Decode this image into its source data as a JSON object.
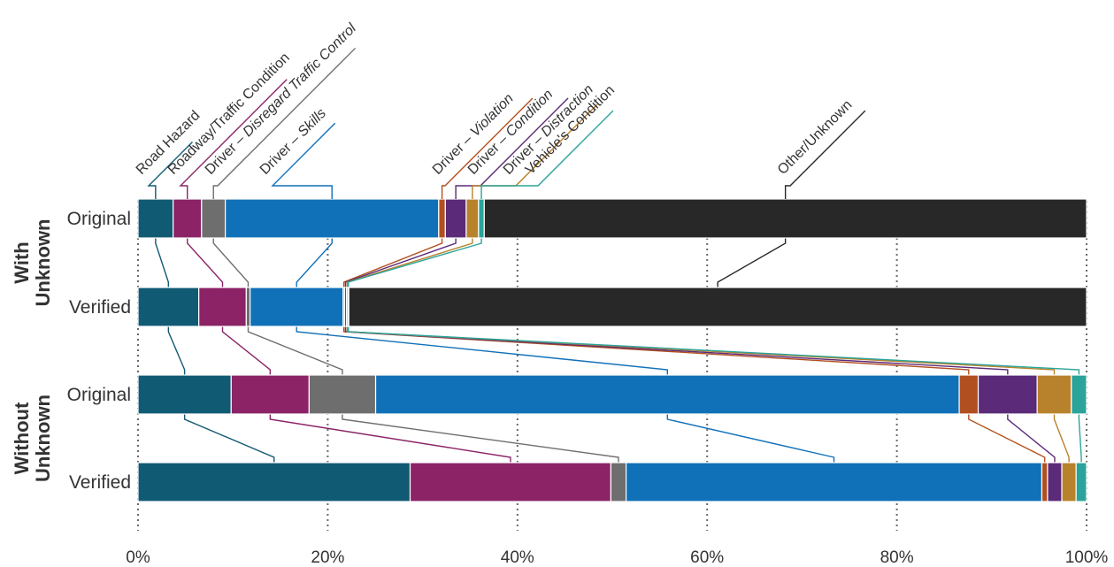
{
  "chart_data": {
    "type": "bar",
    "orientation": "horizontal",
    "stacked": true,
    "normalized": true,
    "groups": [
      {
        "name": "With\nUnknown",
        "rows": [
          "Original",
          "Verified"
        ]
      },
      {
        "name": "Without\nUnknown",
        "rows": [
          "Original",
          "Verified"
        ]
      }
    ],
    "rows": [
      {
        "group": "With Unknown",
        "label": "Original"
      },
      {
        "group": "With Unknown",
        "label": "Verified"
      },
      {
        "group": "Without Unknown",
        "label": "Original"
      },
      {
        "group": "Without Unknown",
        "label": "Verified"
      }
    ],
    "series": [
      {
        "name": "Road Hazard",
        "prefix": "Road Hazard",
        "suffix": "",
        "color": "#115a74",
        "values": [
          3.7,
          6.4,
          9.8,
          28.6
        ]
      },
      {
        "name": "Roadway/Traffic Condition",
        "prefix": "Roadway/Traffic Condition",
        "suffix": "",
        "color": "#8b2366",
        "values": [
          3.0,
          5.0,
          8.2,
          21.1
        ]
      },
      {
        "name": "Driver – Disregard Traffic Control",
        "prefix": "Driver – ",
        "suffix": "Disregard Traffic Control",
        "color": "#6e6e6e",
        "values": [
          2.5,
          0.4,
          7.0,
          1.6
        ]
      },
      {
        "name": "Driver – Skills",
        "prefix": "Driver – ",
        "suffix": "Skills",
        "color": "#1070b8",
        "values": [
          22.5,
          9.8,
          61.4,
          43.7
        ]
      },
      {
        "name": "Driver – Violation",
        "prefix": "Driver – ",
        "suffix": "Violation",
        "color": "#b14f20",
        "values": [
          0.7,
          0.15,
          2.0,
          0.6
        ]
      },
      {
        "name": "Driver – Condition",
        "prefix": "Driver – ",
        "suffix": "Condition",
        "color": "#5b2a78",
        "values": [
          2.2,
          0.2,
          6.2,
          1.5
        ]
      },
      {
        "name": "Driver – Distraction",
        "prefix": "Driver – ",
        "suffix": "Distraction",
        "color": "#b8822c",
        "values": [
          1.3,
          0.15,
          3.6,
          1.5
        ]
      },
      {
        "name": "Vehicle's Condition",
        "prefix": "Vehicle's Condition",
        "suffix": "",
        "color": "#2aa39a",
        "values": [
          0.6,
          0.1,
          1.6,
          1.1
        ]
      },
      {
        "name": "Other/Unknown",
        "prefix": "Other/Unknown",
        "suffix": "",
        "color": "#282828",
        "values": [
          63.5,
          77.7,
          0,
          0
        ]
      }
    ],
    "x_ticks": [
      "0%",
      "20%",
      "40%",
      "60%",
      "80%",
      "100%"
    ],
    "xlim": [
      0,
      100
    ],
    "grid": true
  }
}
